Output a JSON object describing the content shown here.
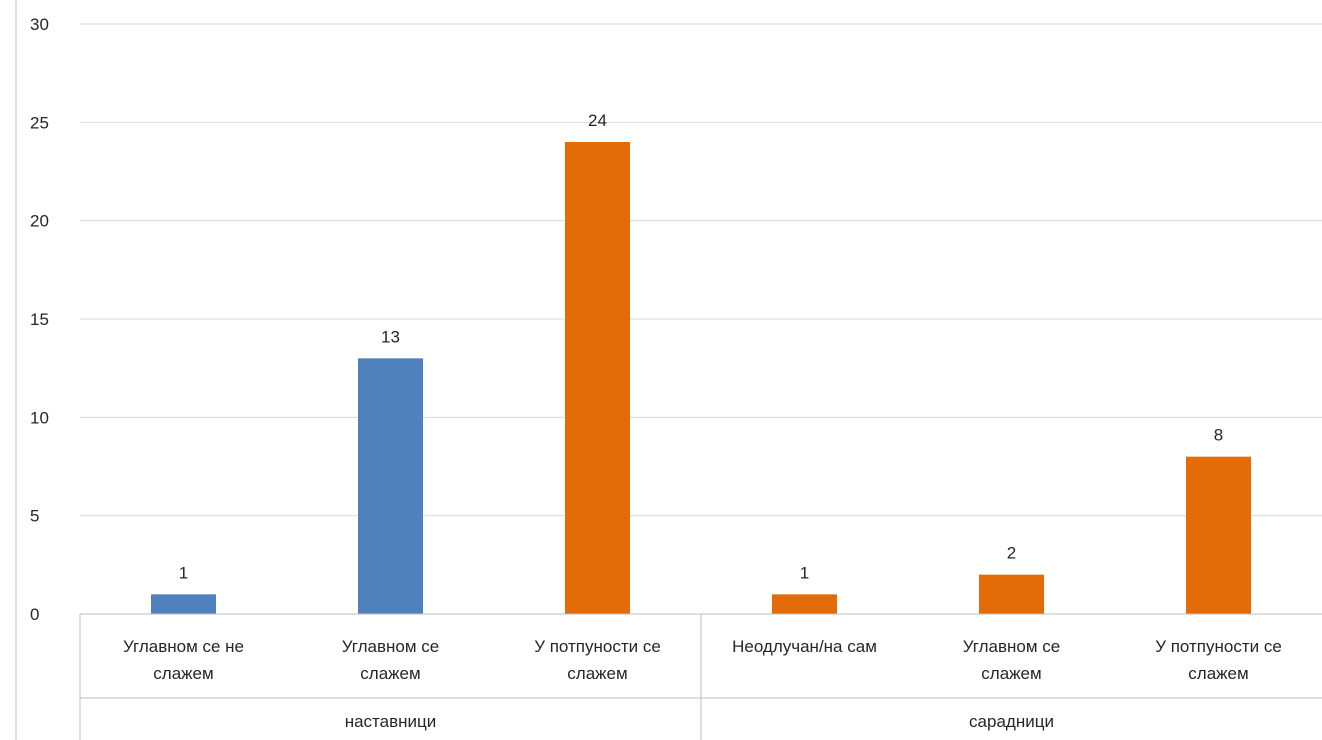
{
  "chart_data": {
    "type": "bar",
    "title": "",
    "xlabel": "",
    "ylabel": "",
    "ylim": [
      0,
      30
    ],
    "yticks": [
      0,
      5,
      10,
      15,
      20,
      25,
      30
    ],
    "grid": true,
    "legend": "none",
    "groups": [
      {
        "label": "наставници",
        "start": 0,
        "end": 3
      },
      {
        "label": "сарадници",
        "start": 3,
        "end": 6
      }
    ],
    "categories": [
      {
        "lines": [
          "Углавном се не",
          "слажем"
        ]
      },
      {
        "lines": [
          "Углавном се",
          "слажем"
        ]
      },
      {
        "lines": [
          "У потпуности се",
          "слажем"
        ]
      },
      {
        "lines": [
          "Неодлучан/на сам"
        ]
      },
      {
        "lines": [
          "Углавном се",
          "слажем"
        ]
      },
      {
        "lines": [
          "У потпуности се",
          "слажем"
        ]
      }
    ],
    "values": [
      1,
      13,
      24,
      1,
      2,
      8
    ],
    "bar_colors": [
      "#4F81BD",
      "#4F81BD",
      "#E36C09",
      "#E36C09",
      "#E36C09",
      "#E36C09"
    ],
    "gridline_color": "#D9D9D9",
    "axis_color": "#BFBFBF"
  }
}
